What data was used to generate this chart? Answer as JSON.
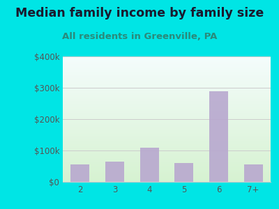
{
  "title": "Median family income by family size",
  "subtitle": "All residents in Greenville, PA",
  "categories": [
    "2",
    "3",
    "4",
    "5",
    "6",
    "7+"
  ],
  "values": [
    55000,
    65000,
    110000,
    60000,
    290000,
    55000
  ],
  "bar_color": "#b8a8cf",
  "outer_bg": "#00e5e5",
  "title_color": "#1a1a2e",
  "subtitle_color": "#2a8a7a",
  "tick_color": "#555555",
  "grid_color": "#cccccc",
  "ylim": [
    0,
    400000
  ],
  "yticks": [
    0,
    100000,
    200000,
    300000,
    400000
  ],
  "ytick_labels": [
    "$0",
    "$100k",
    "$200k",
    "$300k",
    "$400k"
  ],
  "title_fontsize": 12.5,
  "subtitle_fontsize": 9.5,
  "tick_fontsize": 8.5,
  "grad_top": "#f0f8ff",
  "grad_bottom": "#d8efcf"
}
